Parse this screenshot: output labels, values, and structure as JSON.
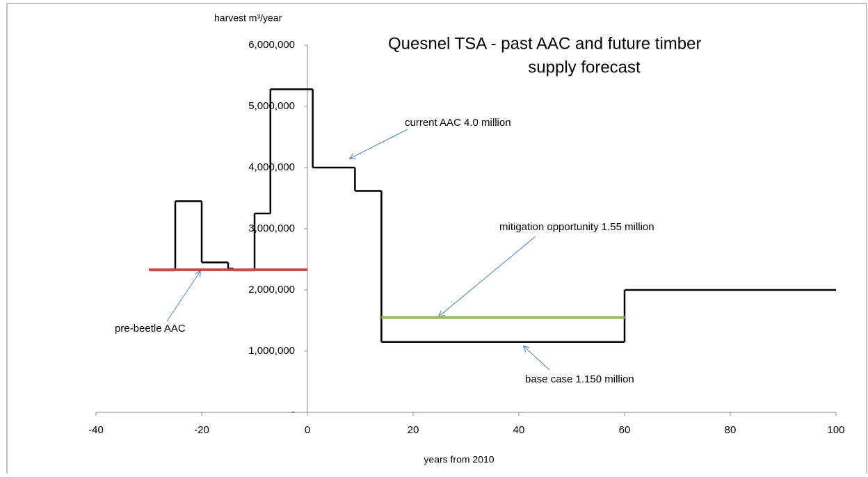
{
  "chart_data": {
    "type": "step",
    "title": [
      "Quesnel TSA - past AAC and future timber",
      "supply forecast"
    ],
    "y_label": "harvest m³/year",
    "x_label": "years from 2010",
    "xlim": [
      -40,
      100
    ],
    "xticks": [
      -40,
      -20,
      0,
      20,
      40,
      60,
      80,
      100
    ],
    "ylim": [
      0,
      6000000
    ],
    "yticks": [
      {
        "value": 0,
        "label": "-"
      },
      {
        "value": 1000000,
        "label": "1,000,000"
      },
      {
        "value": 2000000,
        "label": "2,000,000"
      },
      {
        "value": 3000000,
        "label": "3,000,000"
      },
      {
        "value": 4000000,
        "label": "4,000,000"
      },
      {
        "value": 5000000,
        "label": "5,000,000"
      },
      {
        "value": 6000000,
        "label": "6,000,000"
      }
    ],
    "series": [
      {
        "color": "#000000",
        "x": [
          -30,
          -25,
          -20,
          -15,
          -14,
          -10,
          -7,
          1,
          9,
          14,
          60,
          100
        ],
        "values": [
          2320000,
          3450000,
          2450000,
          2350000,
          2320000,
          3250000,
          5280000,
          4000000,
          3620000,
          1150000,
          2000000,
          2000000
        ]
      },
      {
        "color": "#c0504d",
        "x": [
          -30,
          0
        ],
        "values": [
          2330000,
          2330000
        ]
      },
      {
        "color": "#9bbb59",
        "x": [
          14,
          60
        ],
        "values": [
          1550000,
          1550000
        ]
      }
    ],
    "annotations": [
      "current AAC 4.0 million",
      "mitigation opportunity 1.55 million",
      "pre-beetle AAC",
      "base case 1.150 million"
    ]
  }
}
